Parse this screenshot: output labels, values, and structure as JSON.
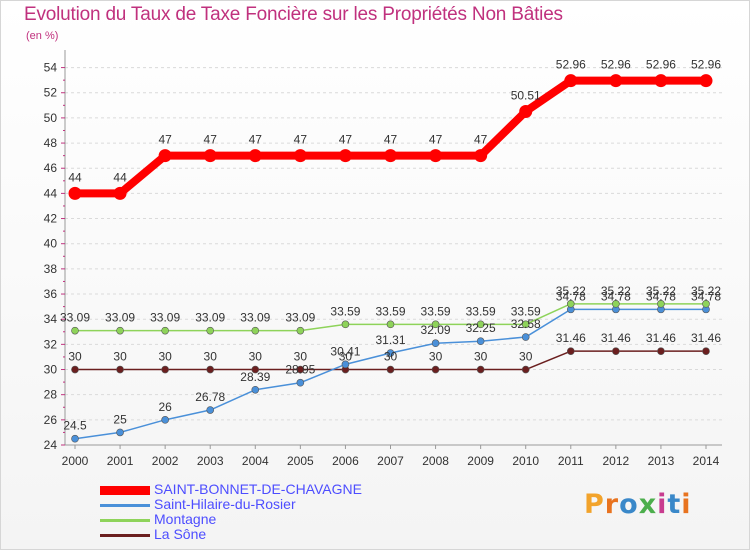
{
  "chart_data": {
    "type": "line",
    "title": "Evolution du Taux de Taxe Foncière sur les Propriétés Non Bâties",
    "subtitle": "(en %)",
    "ylim": [
      24,
      55
    ],
    "y_ticks": [
      24,
      26,
      28,
      30,
      32,
      34,
      36,
      38,
      40,
      42,
      44,
      46,
      48,
      50,
      52,
      54
    ],
    "x": [
      "2000",
      "2001",
      "2002",
      "2003",
      "2004",
      "2005",
      "2006",
      "2007",
      "2008",
      "2009",
      "2010",
      "2011",
      "2012",
      "2013",
      "2014"
    ],
    "grid": true,
    "series": [
      {
        "name": "SAINT-BONNET-DE-CHAVAGNE",
        "color": "#ff0000",
        "values": [
          44,
          44,
          47,
          47,
          47,
          47,
          47,
          47,
          47,
          47,
          50.51,
          52.96,
          52.96,
          52.96,
          52.96
        ],
        "labels": [
          "44",
          "44",
          "47",
          "47",
          "47",
          "47",
          "47",
          "47",
          "47",
          "47",
          "50.51",
          "52.96",
          "52.96",
          "52.96",
          "52.96"
        ]
      },
      {
        "name": "Saint-Hilaire-du-Rosier",
        "color": "#4a90d9",
        "values": [
          24.5,
          25,
          26,
          26.78,
          28.39,
          28.95,
          30.41,
          31.31,
          32.09,
          32.25,
          32.58,
          34.78,
          34.78,
          34.78,
          34.78
        ],
        "labels": [
          "24.5",
          "25",
          "26",
          "26.78",
          "28.39",
          "28.95",
          "30.41",
          "31.31",
          "32.09",
          "32.25",
          "32.58",
          "34.78",
          "34.78",
          "34.78",
          "34.78"
        ]
      },
      {
        "name": "Montagne",
        "color": "#8ed35a",
        "values": [
          33.09,
          33.09,
          33.09,
          33.09,
          33.09,
          33.09,
          33.59,
          33.59,
          33.59,
          33.59,
          33.59,
          35.22,
          35.22,
          35.22,
          35.22
        ],
        "labels": [
          "33.09",
          "33.09",
          "33.09",
          "33.09",
          "33.09",
          "33.09",
          "33.59",
          "33.59",
          "33.59",
          "33.59",
          "33.59",
          "35.22",
          "35.22",
          "35.22",
          "35.22"
        ]
      },
      {
        "name": "La Sône",
        "color": "#6b1f1f",
        "values": [
          30,
          30,
          30,
          30,
          30,
          30,
          30,
          30,
          30,
          30,
          30,
          31.46,
          31.46,
          31.46,
          31.46
        ],
        "labels": [
          "30",
          "30",
          "30",
          "30",
          "30",
          "30",
          "30",
          "30",
          "30",
          "30",
          "30",
          "31.46",
          "31.46",
          "31.46",
          "31.46"
        ]
      }
    ]
  },
  "legend": {
    "items": [
      {
        "label": "SAINT-BONNET-DE-CHAVAGNE",
        "color": "#ff0000",
        "text_color": "#4d4dff"
      },
      {
        "label": "Saint-Hilaire-du-Rosier",
        "color": "#4a90d9",
        "text_color": "#4d4dff"
      },
      {
        "label": "Montagne",
        "color": "#8ed35a",
        "text_color": "#4d4dff"
      },
      {
        "label": "La Sône",
        "color": "#6b1f1f",
        "text_color": "#4d4dff"
      }
    ]
  },
  "logo": {
    "text": "Proxiti",
    "colors": [
      "#f2a32b",
      "#e8731f",
      "#3a88c9",
      "#4cae4c",
      "#c83c8f",
      "#3a88c9",
      "#e8731f"
    ]
  }
}
